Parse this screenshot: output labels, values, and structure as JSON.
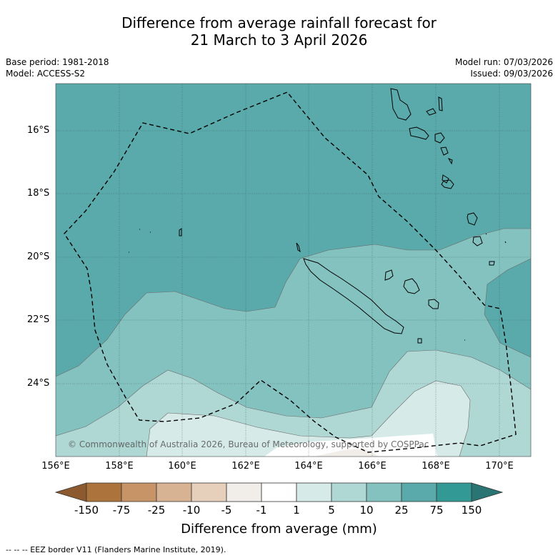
{
  "title": {
    "line1": "Difference from average rainfall forecast for",
    "line2": "21 March to 3 April 2026"
  },
  "meta": {
    "base_period": "Base period: 1981-2018",
    "model": "Model: ACCESS-S2",
    "model_run": "Model run: 07/03/2026",
    "issued": "Issued: 09/03/2026"
  },
  "axes": {
    "lat_labels": [
      "16°S",
      "18°S",
      "20°S",
      "22°S",
      "24°S"
    ],
    "lon_labels": [
      "156°E",
      "158°E",
      "160°E",
      "162°E",
      "164°E",
      "166°E",
      "168°E",
      "170°E"
    ]
  },
  "copyright": "© Commonwealth of Australia 2026, Bureau of Meteorology, supported by COSPPac",
  "colorbar": {
    "title": "Difference from average (mm)",
    "labels": [
      "-150",
      "-75",
      "-25",
      "-10",
      "-5",
      "-1",
      "1",
      "5",
      "10",
      "25",
      "75",
      "150"
    ],
    "colors": {
      "lt_-150": "#8c5a2e",
      "-150_-75": "#ad733c",
      "-75_-25": "#c69466",
      "-25_-10": "#d7b394",
      "-10_-5": "#e6d0bc",
      "-5_-1": "#f1ede8",
      "-1_1": "#ffffff",
      "1_5": "#d6eae7",
      "5_10": "#afd7d4",
      "10_25": "#84c2c0",
      "25_75": "#5aaaab",
      "75_150": "#339995",
      "gt_150": "#2a7573"
    }
  },
  "footer": "-- -- -- EEZ border V11 (Flanders Marine Institute, 2019)."
}
